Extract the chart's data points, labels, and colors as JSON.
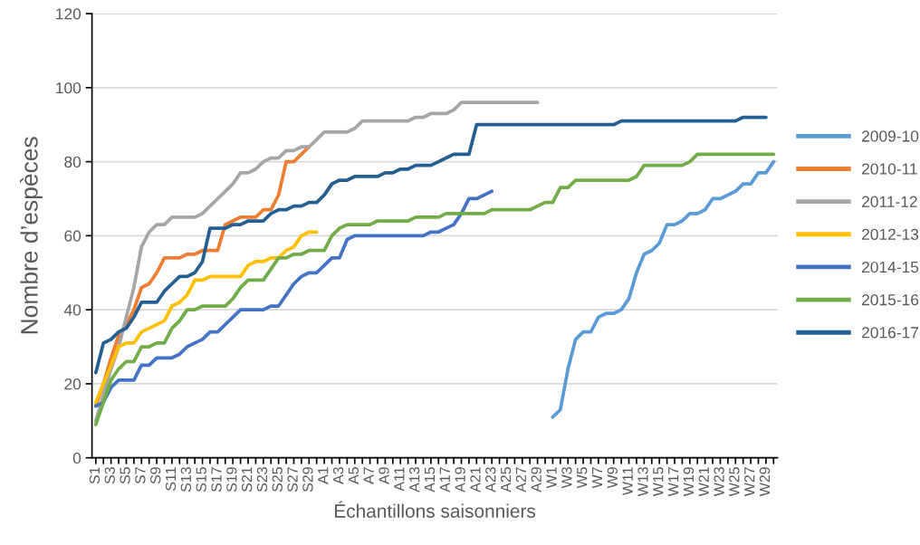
{
  "chart_data": {
    "type": "line",
    "xlabel": "Échantillons saisonniers",
    "ylabel": "Nombre d’espèces",
    "categories": [
      "S1",
      null,
      "S3",
      null,
      "S5",
      null,
      "S7",
      null,
      "S9",
      null,
      "S11",
      null,
      "S13",
      null,
      "S15",
      null,
      "S17",
      null,
      "S19",
      null,
      "S21",
      null,
      "S23",
      null,
      "S25",
      null,
      "S27",
      null,
      "S29",
      null,
      "A1",
      null,
      "A3",
      null,
      "A5",
      null,
      "A7",
      null,
      "A9",
      null,
      "A11",
      null,
      "A13",
      null,
      "A15",
      null,
      "A17",
      null,
      "A19",
      null,
      "A21",
      null,
      "A23",
      null,
      "A25",
      null,
      "A27",
      null,
      "A29",
      null,
      "W1",
      null,
      "W3",
      null,
      "W5",
      null,
      "W7",
      null,
      "W9",
      null,
      "W11",
      null,
      "W13",
      null,
      "W15",
      null,
      "W17",
      null,
      "W19",
      null,
      "W21",
      null,
      "W23",
      null,
      "W25",
      null,
      "W27",
      null,
      "W29",
      null
    ],
    "ylim": [
      0,
      120
    ],
    "yticks": [
      0,
      20,
      40,
      60,
      80,
      100,
      120
    ],
    "grid": "y",
    "legend": "right",
    "series": [
      {
        "name": "2009-10",
        "color": "#5b9bd5",
        "values": [
          null,
          null,
          null,
          null,
          null,
          null,
          null,
          null,
          null,
          null,
          null,
          null,
          null,
          null,
          null,
          null,
          null,
          null,
          null,
          null,
          null,
          null,
          null,
          null,
          null,
          null,
          null,
          null,
          null,
          null,
          null,
          null,
          null,
          null,
          null,
          null,
          null,
          null,
          null,
          null,
          null,
          null,
          null,
          null,
          null,
          null,
          null,
          null,
          null,
          null,
          null,
          null,
          null,
          null,
          null,
          null,
          null,
          null,
          null,
          null,
          11,
          13,
          24,
          32,
          34,
          34,
          38,
          39,
          39,
          40,
          43,
          50,
          55,
          56,
          58,
          63,
          63,
          64,
          66,
          66,
          67,
          70,
          70,
          71,
          72,
          74,
          74,
          77,
          77,
          80
        ]
      },
      {
        "name": "2010-11",
        "color": "#ed7d31",
        "values": [
          14,
          20,
          27,
          33,
          36,
          40,
          46,
          47,
          50,
          54,
          54,
          54,
          55,
          55,
          56,
          56,
          56,
          63,
          64,
          65,
          65,
          65,
          67,
          67,
          71,
          80,
          80,
          82,
          84,
          null,
          null,
          null,
          null,
          null,
          null,
          null,
          null,
          null,
          null,
          null,
          null,
          null,
          null,
          null,
          null,
          null,
          null,
          null,
          null,
          null,
          null,
          null,
          null,
          null,
          null,
          null,
          null,
          null,
          null,
          null,
          null,
          null,
          null,
          null,
          null,
          null,
          null,
          null,
          null,
          null,
          null,
          null,
          null,
          null,
          null,
          null,
          null,
          null,
          null,
          null,
          null,
          null,
          null,
          null,
          null,
          null,
          null,
          null,
          null,
          null
        ]
      },
      {
        "name": "2011-12",
        "color": "#a5a5a5",
        "values": [
          10,
          17,
          24,
          30,
          38,
          46,
          57,
          61,
          63,
          63,
          65,
          65,
          65,
          65,
          66,
          68,
          70,
          72,
          74,
          77,
          77,
          78,
          80,
          81,
          81,
          83,
          83,
          84,
          84,
          86,
          88,
          88,
          88,
          88,
          89,
          91,
          91,
          91,
          91,
          91,
          91,
          91,
          92,
          92,
          93,
          93,
          93,
          94,
          96,
          96,
          96,
          96,
          96,
          96,
          96,
          96,
          96,
          96,
          96,
          null,
          null,
          null,
          null,
          null,
          null,
          null,
          null,
          null,
          null,
          null,
          null,
          null,
          null,
          null,
          null,
          null,
          null,
          null,
          null,
          null,
          null,
          null,
          null,
          null,
          null,
          null,
          null,
          null,
          null,
          null
        ]
      },
      {
        "name": "2012-13",
        "color": "#ffc000",
        "values": [
          15,
          20,
          25,
          30,
          31,
          31,
          34,
          35,
          36,
          37,
          41,
          42,
          44,
          48,
          48,
          49,
          49,
          49,
          49,
          49,
          52,
          53,
          53,
          54,
          54,
          56,
          57,
          60,
          61,
          61,
          null,
          null,
          null,
          null,
          null,
          null,
          null,
          null,
          null,
          null,
          null,
          null,
          null,
          null,
          null,
          null,
          null,
          null,
          null,
          null,
          null,
          null,
          null,
          null,
          null,
          null,
          null,
          null,
          null,
          null,
          null,
          null,
          null,
          null,
          null,
          null,
          null,
          null,
          null,
          null,
          null,
          null,
          null,
          null,
          null,
          null,
          null,
          null,
          null,
          null,
          null,
          null,
          null,
          null,
          null,
          null,
          null,
          null,
          null,
          null
        ]
      },
      {
        "name": "2014-15",
        "color": "#4472c4",
        "values": [
          14,
          15,
          19,
          21,
          21,
          21,
          25,
          25,
          27,
          27,
          27,
          28,
          30,
          31,
          32,
          34,
          34,
          36,
          38,
          40,
          40,
          40,
          40,
          41,
          41,
          44,
          47,
          49,
          50,
          50,
          52,
          54,
          54,
          59,
          60,
          60,
          60,
          60,
          60,
          60,
          60,
          60,
          60,
          60,
          61,
          61,
          62,
          63,
          66,
          70,
          70,
          71,
          72,
          null,
          null,
          null,
          null,
          null,
          null,
          null,
          null,
          null,
          null,
          null,
          null,
          null,
          null,
          null,
          null,
          null,
          null,
          null,
          null,
          null,
          null,
          null,
          null,
          null,
          null,
          null,
          null,
          null,
          null,
          null,
          null,
          null,
          null,
          null,
          null,
          null
        ]
      },
      {
        "name": "2015-16",
        "color": "#70ad47",
        "values": [
          9,
          15,
          21,
          24,
          26,
          26,
          30,
          30,
          31,
          31,
          35,
          37,
          40,
          40,
          41,
          41,
          41,
          41,
          43,
          46,
          48,
          48,
          48,
          51,
          54,
          54,
          55,
          55,
          56,
          56,
          56,
          60,
          62,
          63,
          63,
          63,
          63,
          64,
          64,
          64,
          64,
          64,
          65,
          65,
          65,
          65,
          66,
          66,
          66,
          66,
          66,
          66,
          67,
          67,
          67,
          67,
          67,
          67,
          68,
          69,
          69,
          73,
          73,
          75,
          75,
          75,
          75,
          75,
          75,
          75,
          75,
          76,
          79,
          79,
          79,
          79,
          79,
          79,
          80,
          82,
          82,
          82,
          82,
          82,
          82,
          82,
          82,
          82,
          82,
          82
        ]
      },
      {
        "name": "2016-17",
        "color": "#255e91",
        "values": [
          23,
          31,
          32,
          34,
          35,
          38,
          42,
          42,
          42,
          45,
          47,
          49,
          49,
          50,
          53,
          62,
          62,
          62,
          63,
          63,
          64,
          64,
          64,
          66,
          67,
          67,
          68,
          68,
          69,
          69,
          71,
          74,
          75,
          75,
          76,
          76,
          76,
          76,
          77,
          77,
          78,
          78,
          79,
          79,
          79,
          80,
          81,
          82,
          82,
          82,
          90,
          90,
          90,
          90,
          90,
          90,
          90,
          90,
          90,
          90,
          90,
          90,
          90,
          90,
          90,
          90,
          90,
          90,
          90,
          91,
          91,
          91,
          91,
          91,
          91,
          91,
          91,
          91,
          91,
          91,
          91,
          91,
          91,
          91,
          91,
          92,
          92,
          92,
          92,
          null
        ]
      }
    ]
  }
}
